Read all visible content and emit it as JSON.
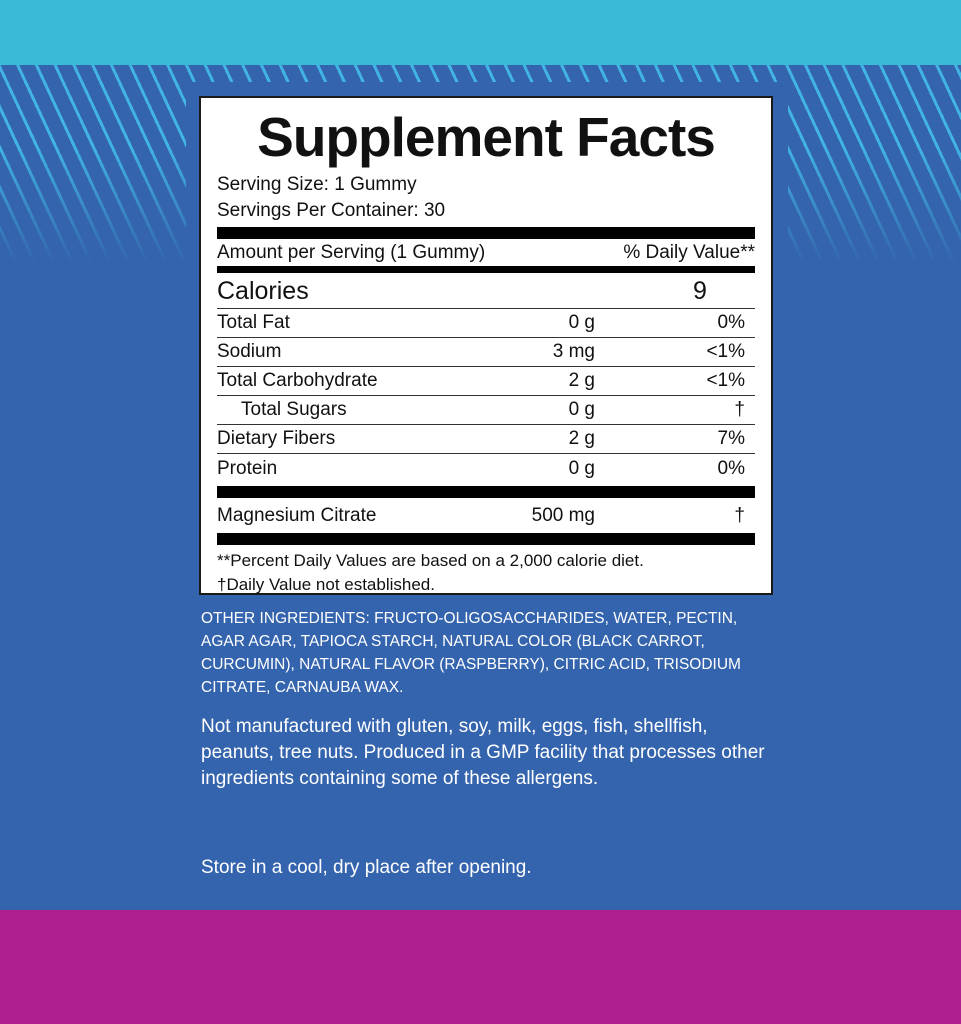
{
  "colors": {
    "top": "#3bbad8",
    "main": "#3464ad",
    "bottom": "#b01f8e",
    "stripes": "#41b4e4"
  },
  "facts": {
    "title": "Supplement Facts",
    "serving_size": "Serving Size: 1 Gummy",
    "servings_per_container": "Servings Per Container: 30",
    "amount_header": "Amount per Serving (1 Gummy)",
    "dv_header": "% Daily Value**",
    "calories": {
      "label": "Calories",
      "value": "9"
    },
    "rows": [
      {
        "name": "Total Fat",
        "amount": "0 g",
        "dv": "0%"
      },
      {
        "name": "Sodium",
        "amount": "3 mg",
        "dv": "<1%"
      },
      {
        "name": "Total Carbohydrate",
        "amount": "2 g",
        "dv": "<1%"
      },
      {
        "name": "Total Sugars",
        "amount": "0 g",
        "dv": "†"
      },
      {
        "name": "Dietary Fibers",
        "amount": "2 g",
        "dv": "7%"
      },
      {
        "name": "Protein",
        "amount": "0 g",
        "dv": "0%"
      }
    ],
    "active": {
      "name": "Magnesium Citrate",
      "amount": "500 mg",
      "dv": "†"
    },
    "footnote1": "**Percent Daily Values are based on a 2,000 calorie diet.",
    "footnote2": "†Daily Value not established."
  },
  "other_ingredients": {
    "label": "OTHER INGREDIENTS:",
    "text": " FRUCTO-OLIGOSACCHARIDES, WATER, PECTIN, AGAR AGAR, TAPIOCA STARCH, NATURAL COLOR (BLACK CARROT, CURCUMIN), NATURAL FLAVOR (RASPBERRY), CITRIC ACID, TRISODIUM CITRATE, CARNAUBA WAX."
  },
  "allergen": "Not manufactured with gluten, soy, milk, eggs, fish, shellfish, peanuts, tree nuts. Produced in a GMP facility that processes other ingredients containing some of these allergens.",
  "storage": "Store in a cool, dry place after opening."
}
